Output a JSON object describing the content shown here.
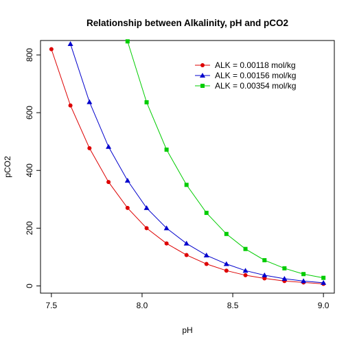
{
  "chart_data": {
    "type": "line",
    "title": "Relationship between Alkalinity, pH and pCO2",
    "xlabel": "pH",
    "ylabel": "pCO2",
    "xlim": [
      7.44,
      9.06
    ],
    "ylim": [
      -25,
      850
    ],
    "x_ticks": [
      "7.5",
      "8.0",
      "8.5",
      "9.0"
    ],
    "x_tick_values": [
      7.5,
      8.0,
      8.5,
      9.0
    ],
    "y_ticks": [
      "0",
      "200",
      "400",
      "600",
      "800"
    ],
    "y_tick_values": [
      0,
      200,
      400,
      600,
      800
    ],
    "grid": false,
    "legend_position": "top-right",
    "series": [
      {
        "name": "ALK = 0.00118 mol/kg",
        "color": "#dd0000",
        "marker": "circle",
        "x": [
          7.5,
          7.605,
          7.71,
          7.815,
          7.92,
          8.025,
          8.135,
          8.245,
          8.355,
          8.465,
          8.57,
          8.675,
          8.785,
          8.89,
          9.0
        ],
        "y": [
          820,
          625,
          477,
          360,
          270,
          200,
          147,
          107,
          76,
          53,
          37,
          26,
          17,
          12,
          7
        ]
      },
      {
        "name": "ALK = 0.00156 mol/kg",
        "color": "#0000cc",
        "marker": "triangle",
        "x": [
          7.605,
          7.71,
          7.815,
          7.92,
          8.025,
          8.135,
          8.245,
          8.355,
          8.465,
          8.57,
          8.675,
          8.785,
          8.89,
          9.0
        ],
        "y": [
          838,
          637,
          482,
          365,
          270,
          200,
          147,
          106,
          76,
          53,
          37,
          25,
          17,
          11
        ]
      },
      {
        "name": "ALK = 0.00354 mol/kg",
        "color": "#00cc00",
        "marker": "square",
        "x": [
          7.92,
          8.025,
          8.135,
          8.245,
          8.355,
          8.465,
          8.57,
          8.675,
          8.785,
          8.89,
          9.0
        ],
        "y": [
          847,
          636,
          472,
          350,
          253,
          180,
          128,
          89,
          61,
          41,
          28
        ]
      }
    ]
  }
}
